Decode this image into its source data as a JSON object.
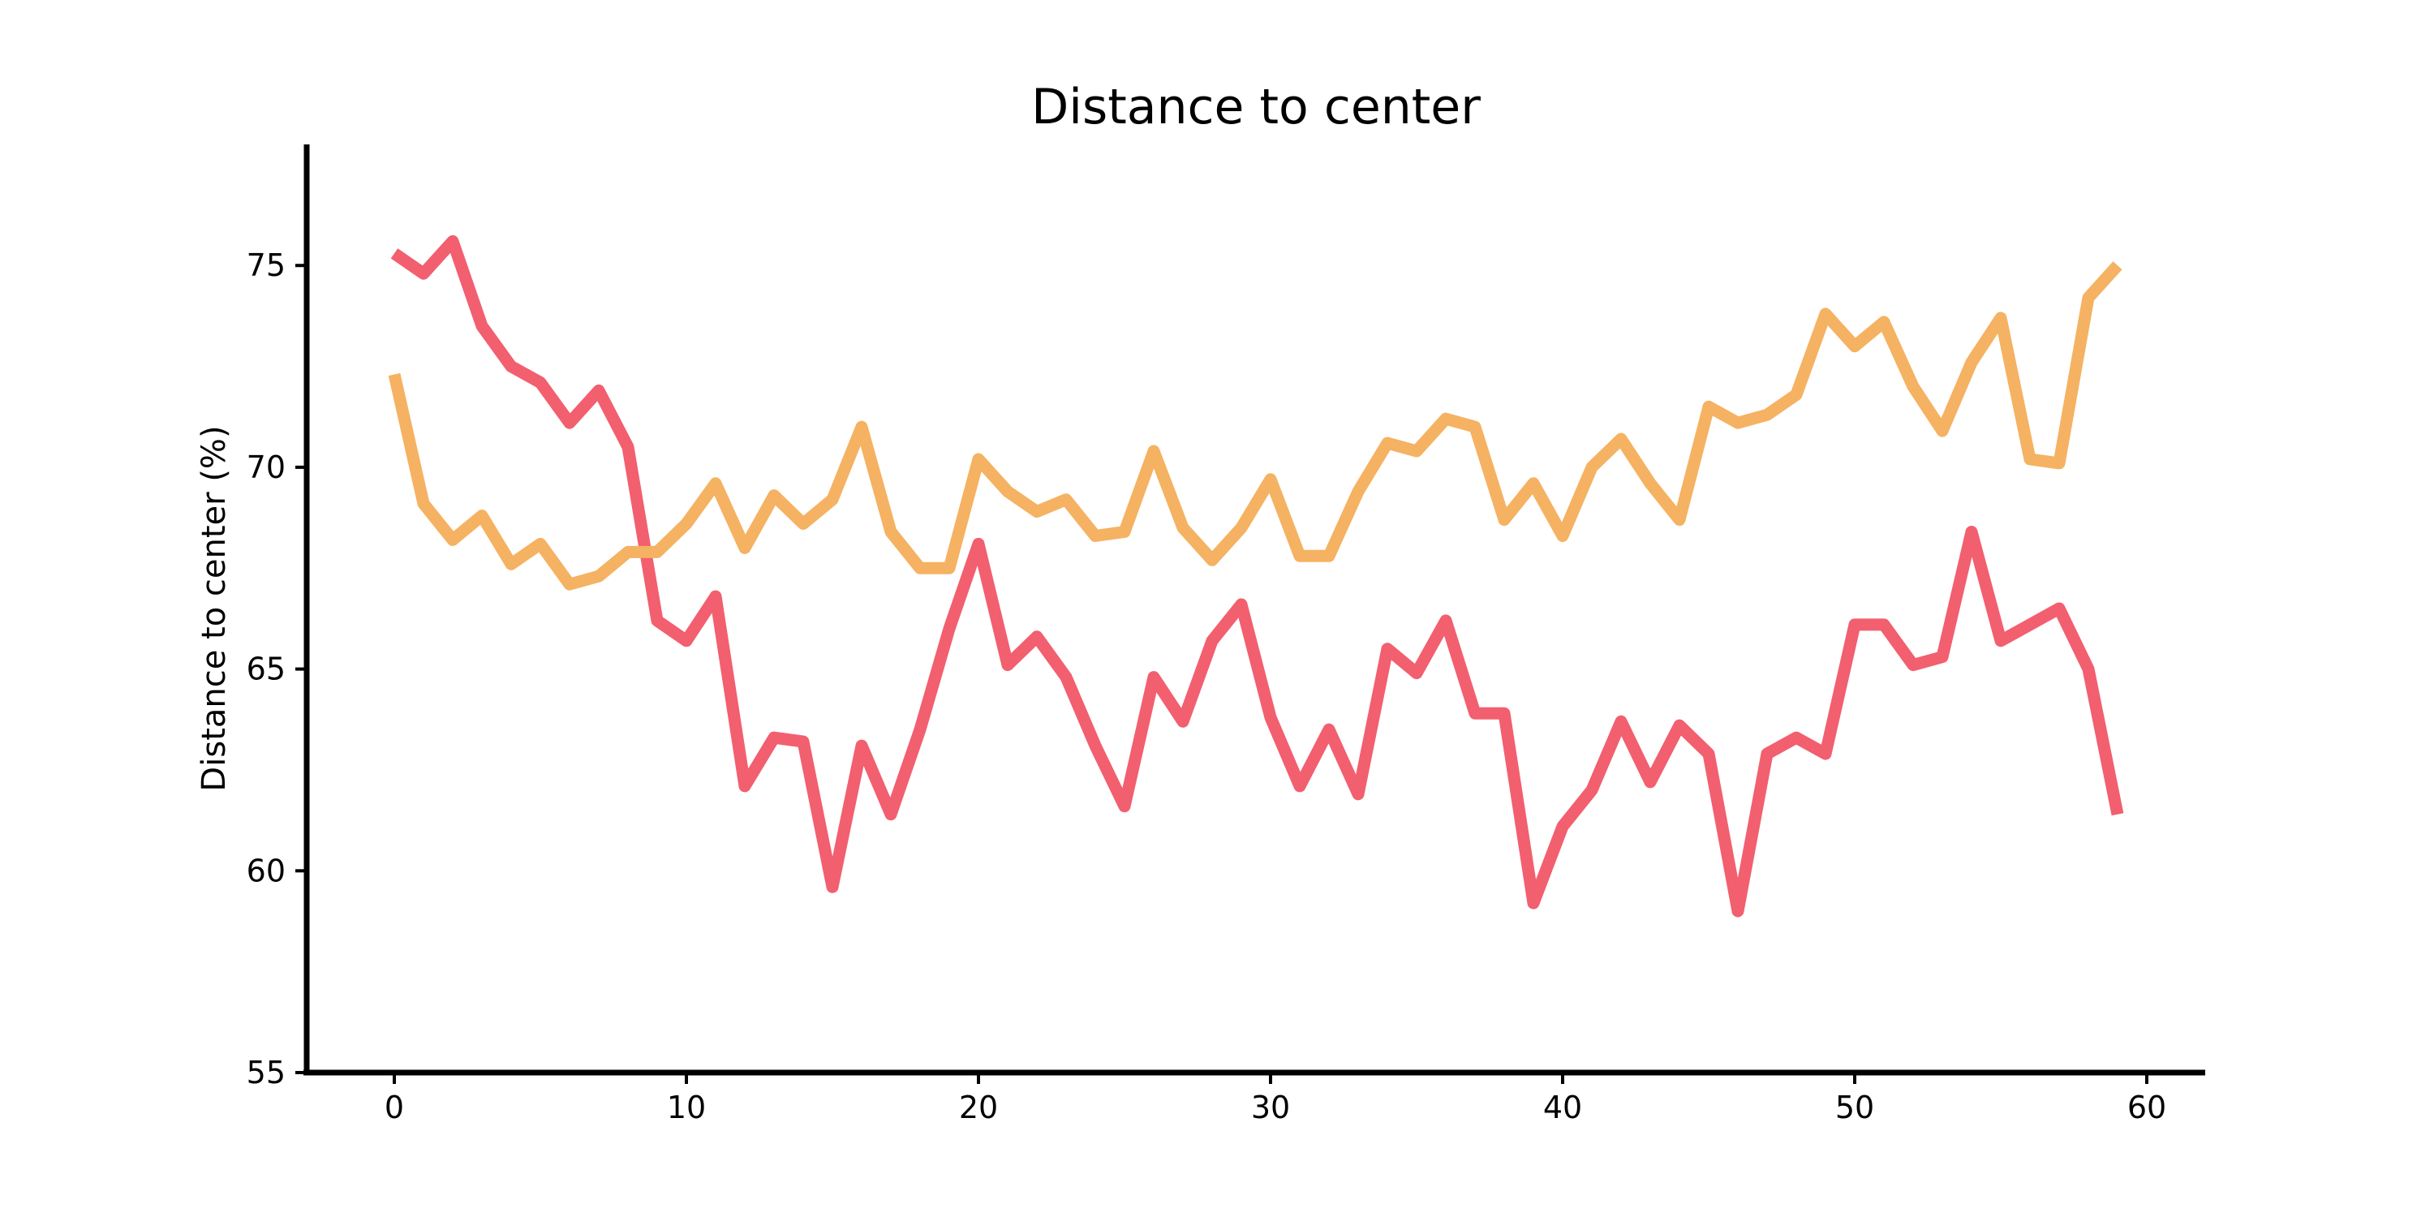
{
  "chart_data": {
    "type": "line",
    "title": "Distance to center",
    "xlabel": "",
    "ylabel": "Distance to center (%)",
    "xlim": [
      -3,
      62
    ],
    "ylim": [
      55,
      78
    ],
    "xticks": [
      0,
      10,
      20,
      30,
      40,
      50,
      60
    ],
    "yticks": [
      55,
      60,
      65,
      70,
      75
    ],
    "grid": false,
    "legend": "none",
    "x": [
      0,
      1,
      2,
      3,
      4,
      5,
      6,
      7,
      8,
      9,
      10,
      11,
      12,
      13,
      14,
      15,
      16,
      17,
      18,
      19,
      20,
      21,
      22,
      23,
      24,
      25,
      26,
      27,
      28,
      29,
      30,
      31,
      32,
      33,
      34,
      35,
      36,
      37,
      38,
      39,
      40,
      41,
      42,
      43,
      44,
      45,
      46,
      47,
      48,
      49,
      50,
      51,
      52,
      53,
      54,
      55,
      56,
      57,
      58,
      59
    ],
    "series": [
      {
        "color": "#f25f6f",
        "values": [
          75.3,
          74.8,
          75.6,
          73.5,
          72.5,
          72.1,
          71.1,
          71.9,
          70.5,
          66.2,
          65.7,
          66.8,
          62.1,
          63.3,
          63.2,
          59.6,
          63.1,
          61.4,
          63.5,
          66.0,
          68.1,
          65.1,
          65.8,
          64.8,
          63.1,
          61.6,
          64.8,
          63.7,
          65.7,
          66.6,
          63.8,
          62.1,
          63.5,
          61.9,
          65.5,
          64.9,
          66.2,
          63.9,
          63.9,
          59.2,
          61.1,
          62.0,
          63.7,
          62.2,
          63.6,
          62.9,
          59.0,
          62.9,
          63.3,
          62.9,
          66.1,
          66.1,
          65.1,
          65.3,
          68.4,
          65.7,
          66.1,
          66.5,
          65.0,
          61.4
        ]
      },
      {
        "color": "#f5b262",
        "values": [
          72.3,
          69.1,
          68.2,
          68.8,
          67.6,
          68.1,
          67.1,
          67.3,
          67.9,
          67.9,
          68.6,
          69.6,
          68.0,
          69.3,
          68.6,
          69.2,
          71.0,
          68.4,
          67.5,
          67.5,
          70.2,
          69.4,
          68.9,
          69.2,
          68.3,
          68.4,
          70.4,
          68.5,
          67.7,
          68.5,
          69.7,
          67.8,
          67.8,
          69.4,
          70.6,
          70.4,
          71.2,
          71.0,
          68.7,
          69.6,
          68.3,
          70.0,
          70.7,
          69.6,
          68.7,
          71.5,
          71.1,
          71.3,
          71.8,
          73.8,
          73.0,
          73.6,
          72.0,
          70.9,
          72.6,
          73.7,
          70.2,
          70.1,
          74.2,
          75.0
        ]
      }
    ]
  }
}
